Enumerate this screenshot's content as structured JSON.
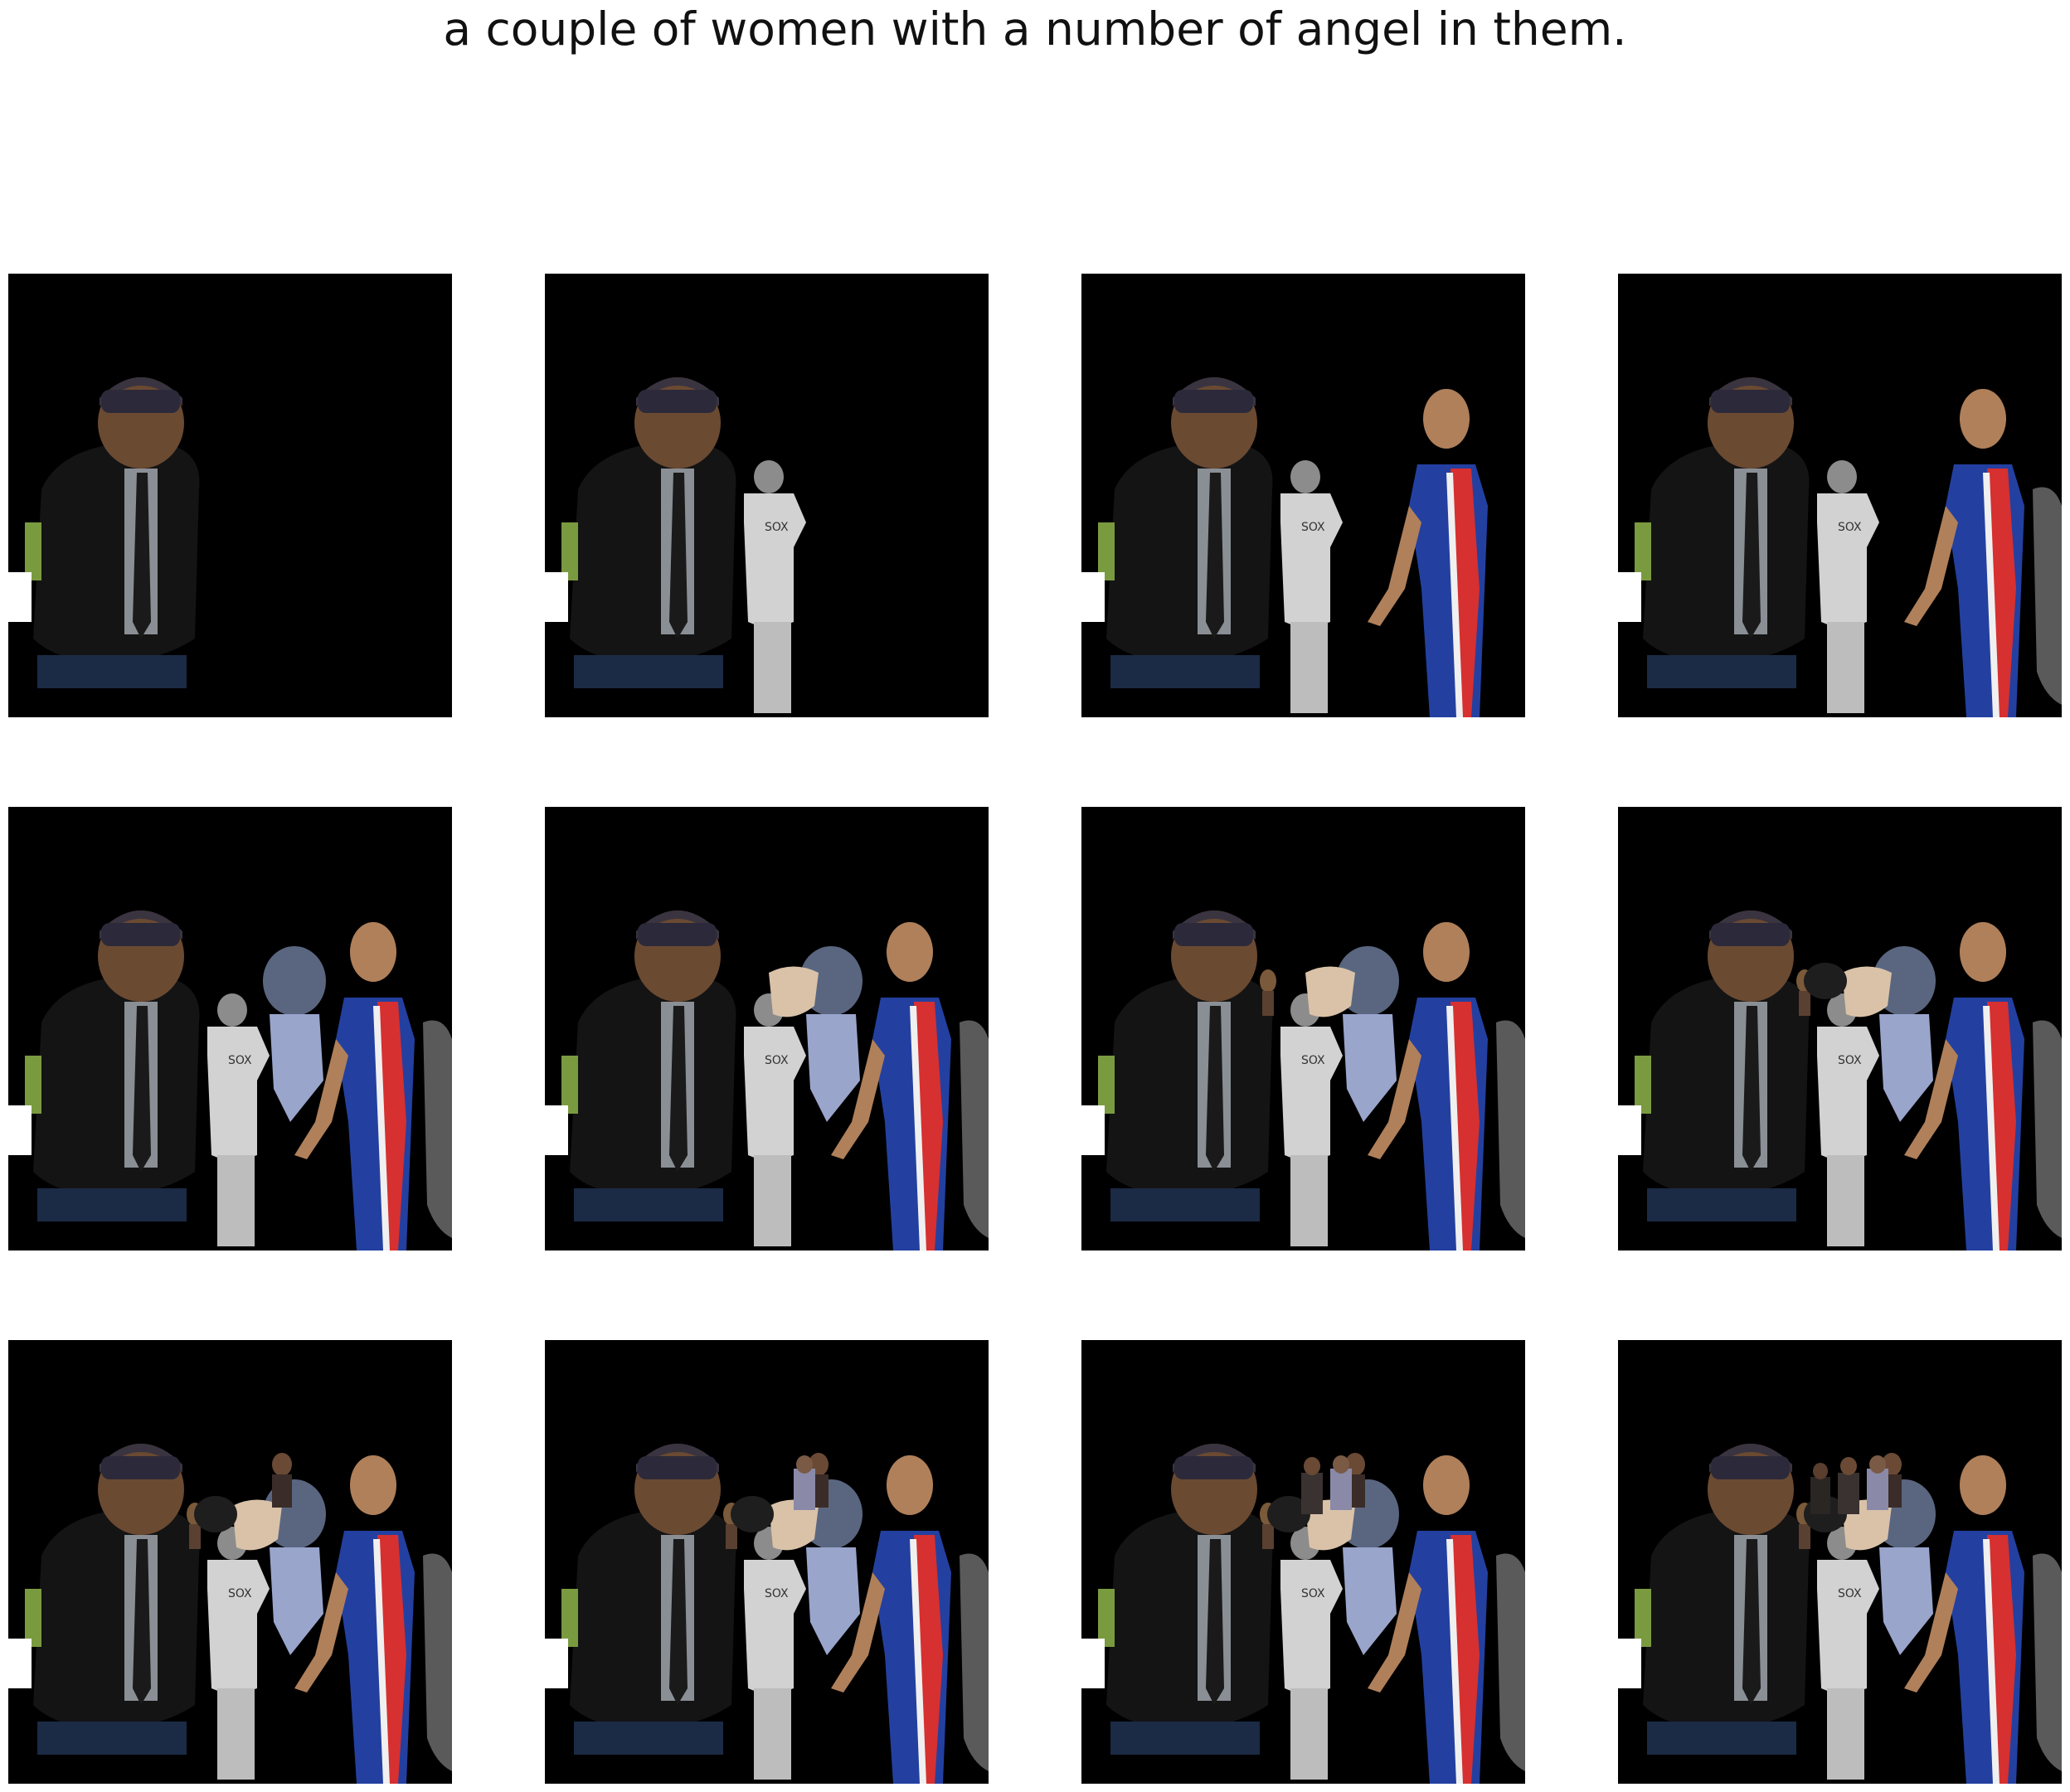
{
  "caption": "a couple of women with a number of angel in them.",
  "grid": {
    "rows": 3,
    "cols": 4,
    "panels": [
      {
        "step": 1,
        "figures": [
          "man-cap"
        ]
      },
      {
        "step": 2,
        "figures": [
          "man-cap",
          "player-bw"
        ]
      },
      {
        "step": 3,
        "figures": [
          "man-cap",
          "player-bw",
          "athlete"
        ]
      },
      {
        "step": 4,
        "figures": [
          "man-cap",
          "player-bw",
          "athlete",
          "right-edge"
        ]
      },
      {
        "step": 5,
        "figures": [
          "man-cap",
          "player-bw",
          "athlete",
          "right-edge",
          "blur-face"
        ]
      },
      {
        "step": 6,
        "figures": [
          "man-cap",
          "player-bw",
          "athlete",
          "right-edge",
          "blur-face",
          "hair-patch"
        ]
      },
      {
        "step": 7,
        "figures": [
          "man-cap",
          "player-bw",
          "athlete",
          "right-edge",
          "blur-face",
          "hair-patch",
          "small-figure"
        ]
      },
      {
        "step": 8,
        "figures": [
          "man-cap",
          "player-bw",
          "athlete",
          "right-edge",
          "blur-face",
          "hair-patch",
          "small-figure",
          "dark-cap"
        ]
      },
      {
        "step": 9,
        "figures": [
          "man-cap",
          "player-bw",
          "athlete",
          "right-edge",
          "blur-face",
          "hair-patch",
          "small-figure",
          "dark-cap",
          "top-person"
        ]
      },
      {
        "step": 10,
        "figures": [
          "man-cap",
          "player-bw",
          "athlete",
          "right-edge",
          "blur-face",
          "hair-patch",
          "small-figure",
          "dark-cap",
          "top-person",
          "group-a"
        ]
      },
      {
        "step": 11,
        "figures": [
          "man-cap",
          "player-bw",
          "athlete",
          "right-edge",
          "blur-face",
          "hair-patch",
          "small-figure",
          "dark-cap",
          "top-person",
          "group-a",
          "group-b"
        ]
      },
      {
        "step": 12,
        "figures": [
          "man-cap",
          "player-bw",
          "athlete",
          "right-edge",
          "blur-face",
          "hair-patch",
          "small-figure",
          "dark-cap",
          "top-person",
          "group-a",
          "group-b",
          "group-c"
        ]
      }
    ]
  },
  "colors": {
    "background": "#ffffff",
    "panel": "#000000"
  }
}
